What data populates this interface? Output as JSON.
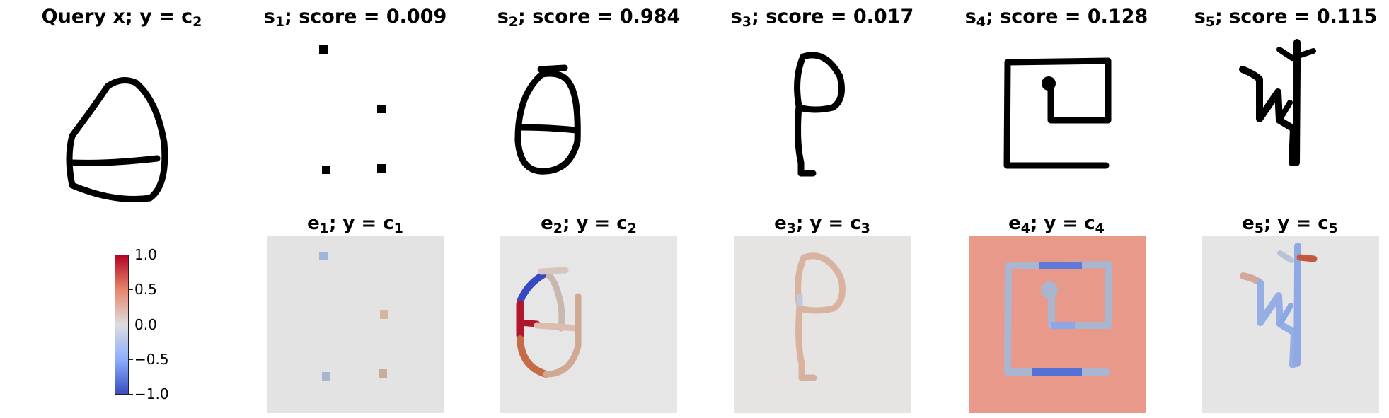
{
  "top_row": [
    {
      "pre": "Query x; y = c",
      "sub": "2",
      "post": ""
    },
    {
      "pre": "s",
      "sub": "1",
      "post": "; score = 0.009"
    },
    {
      "pre": "s",
      "sub": "2",
      "post": "; score = 0.984"
    },
    {
      "pre": "s",
      "sub": "3",
      "post": "; score = 0.017"
    },
    {
      "pre": "s",
      "sub": "4",
      "post": "; score = 0.128"
    },
    {
      "pre": "s",
      "sub": "5",
      "post": "; score = 0.115"
    }
  ],
  "bottom_row": [
    {
      "pre": "e",
      "sub": "1",
      "mid": "; y = c",
      "sub2": "1"
    },
    {
      "pre": "e",
      "sub": "2",
      "mid": "; y = c",
      "sub2": "2"
    },
    {
      "pre": "e",
      "sub": "3",
      "mid": "; y = c",
      "sub2": "3"
    },
    {
      "pre": "e",
      "sub": "4",
      "mid": "; y = c",
      "sub2": "4"
    },
    {
      "pre": "e",
      "sub": "5",
      "mid": "; y = c",
      "sub2": "5"
    }
  ],
  "colorbar": {
    "ticks": [
      "1.0",
      "0.5",
      "0.0",
      "−0.5",
      "−1.0"
    ],
    "colormap": [
      "#b40426",
      "#e8866c",
      "#dddddd",
      "#8caffe",
      "#3b4cc0"
    ]
  }
}
